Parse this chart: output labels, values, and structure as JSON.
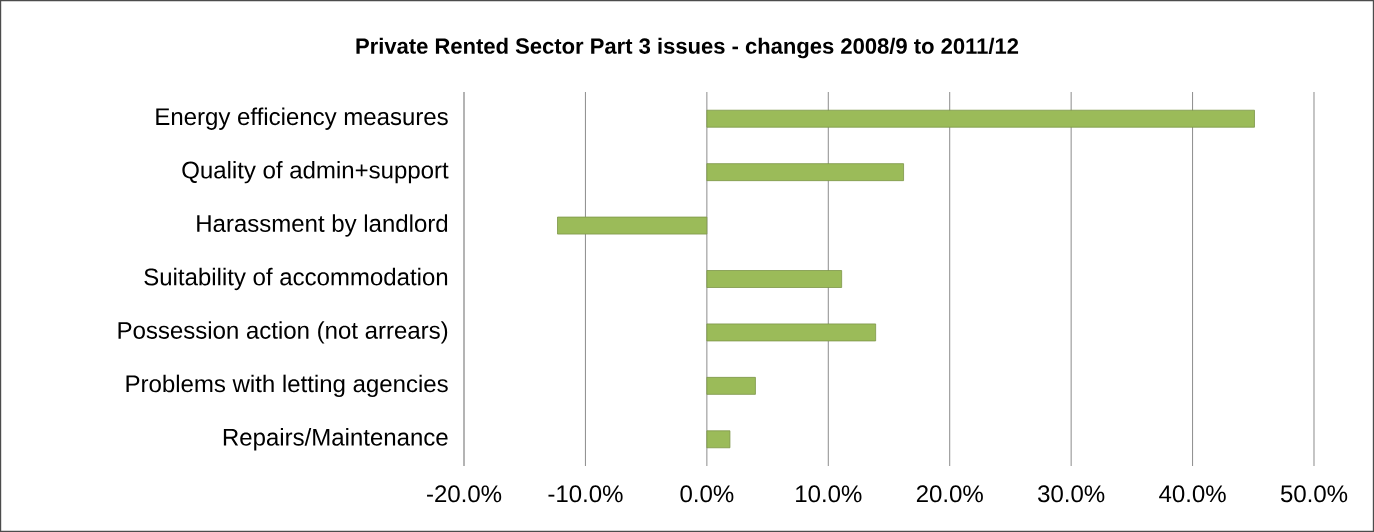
{
  "chart_data": {
    "type": "bar",
    "orientation": "horizontal",
    "title": "Private Rented Sector Part 3 issues - changes 2008/9 to 2011/12",
    "categories": [
      "Energy efficiency measures",
      "Quality of admin+support",
      "Harassment by landlord",
      "Suitability of accommodation",
      "Possession action (not arrears)",
      "Problems with letting agencies",
      "Repairs/Maintenance"
    ],
    "values": [
      45.1,
      16.2,
      -12.3,
      11.1,
      13.9,
      4.0,
      1.9
    ],
    "color": "#9bbb59",
    "xlim": [
      -20,
      50
    ],
    "xticks": [
      {
        "value": -20,
        "label": "-20.0%"
      },
      {
        "value": -10,
        "label": "-10.0%"
      },
      {
        "value": 0,
        "label": "0.0%"
      },
      {
        "value": 10,
        "label": "10.0%"
      },
      {
        "value": 20,
        "label": "20.0%"
      },
      {
        "value": 30,
        "label": "30.0%"
      },
      {
        "value": 40,
        "label": "40.0%"
      },
      {
        "value": 50,
        "label": "50.0%"
      }
    ],
    "grid": "x"
  }
}
